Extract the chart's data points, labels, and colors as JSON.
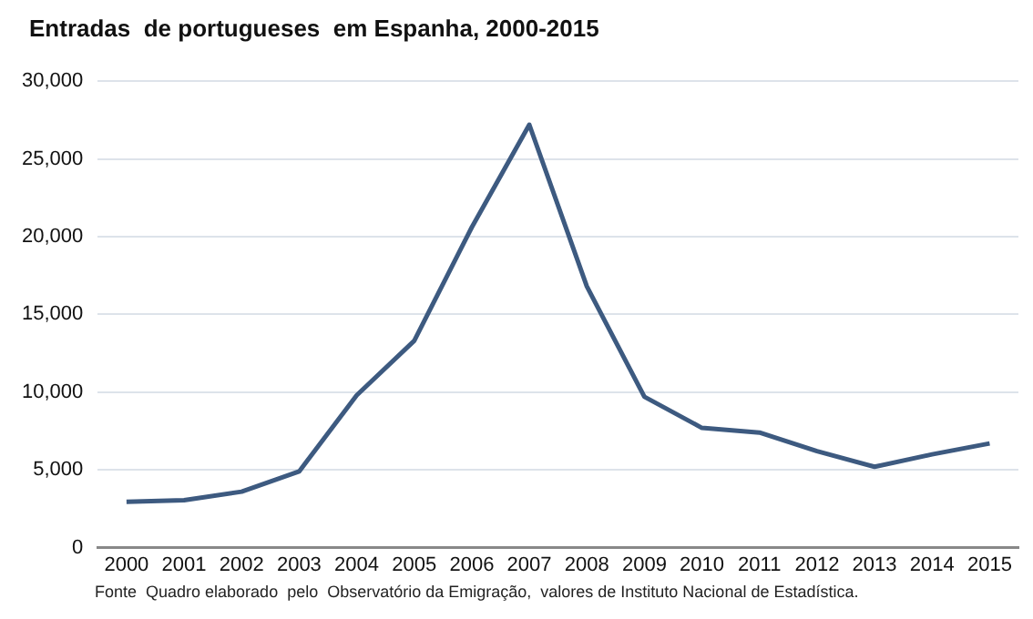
{
  "chart_data": {
    "type": "line",
    "title": "Entradas  de portugueses  em Espanha, 2000-2015",
    "categories": [
      "2000",
      "2001",
      "2002",
      "2003",
      "2004",
      "2005",
      "2006",
      "2007",
      "2008",
      "2009",
      "2010",
      "2011",
      "2012",
      "2013",
      "2014",
      "2015"
    ],
    "series": [
      {
        "color": "#3d5a80",
        "values": [
          2950,
          3050,
          3600,
          4900,
          9800,
          13300,
          20600,
          27200,
          16800,
          9700,
          7700,
          7400,
          6200,
          5200,
          6000,
          6700
        ]
      }
    ],
    "ylim": [
      0,
      30000
    ],
    "yticks": [
      {
        "value": 0,
        "label": "0"
      },
      {
        "value": 5000,
        "label": "5,000"
      },
      {
        "value": 10000,
        "label": "10,000"
      },
      {
        "value": 15000,
        "label": "15,000"
      },
      {
        "value": 20000,
        "label": "20,000"
      },
      {
        "value": 25000,
        "label": "25,000"
      },
      {
        "value": 30000,
        "label": "30,000"
      }
    ],
    "grid": "y",
    "legend": false,
    "marker": "none",
    "line_style": "solid",
    "annotations": [
      "Fonte  Quadro elaborado  pelo  Observatório da Emigração,  valores de Instituto Nacional de Estadística."
    ]
  }
}
